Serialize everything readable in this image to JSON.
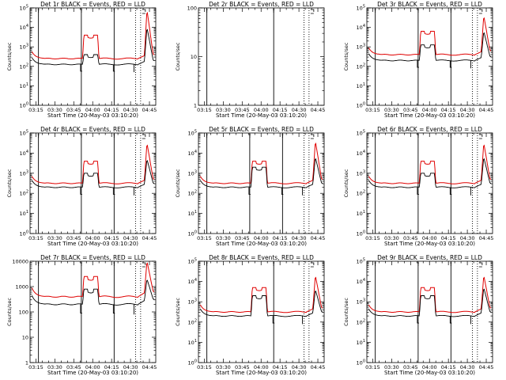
{
  "colors": {
    "events": "#000000",
    "lld": "#e00000",
    "background": "#ffffff"
  },
  "chart_data": [
    {
      "type": "line",
      "title": "Det 1r BLACK = Events, RED = LLD",
      "xlabel": "Start Time (20-May-03 03:10:20)",
      "ylabel": "Counts/sec",
      "x_tick_labels": [
        "03:15",
        "03:30",
        "03:45",
        "04:00",
        "04:15",
        "04:30",
        "04:45"
      ],
      "y_tick_labels": [
        "10^0",
        "10^1",
        "10^2",
        "10^3",
        "10^4",
        "10^5"
      ],
      "y_log_range": [
        0,
        5
      ],
      "has_data": true,
      "solid_lines": [
        "03:17",
        "03:51",
        "04:17"
      ],
      "dotted_lines": [
        "04:34",
        "04:38"
      ],
      "events_base": 2.1,
      "events_peak": 2.6,
      "lld_base": 2.4,
      "lld_peak": 3.6,
      "end_peak": 4.9,
      "end_events": 4.0,
      "series": [
        {
          "name": "Events",
          "color": "#000000"
        },
        {
          "name": "LLD",
          "color": "#e00000"
        }
      ]
    },
    {
      "type": "line",
      "title": "Det 2r BLACK = Events, RED = LLD",
      "xlabel": "Start Time (20-May-03 03:10:20)",
      "ylabel": "Counts/sec",
      "x_tick_labels": [
        "03:15",
        "03:30",
        "03:45",
        "04:00",
        "04:15",
        "04:30",
        "04:45"
      ],
      "y_tick_labels": [
        "1",
        "10",
        "100"
      ],
      "y_log_range": [
        0,
        2
      ],
      "has_data": false,
      "solid_lines": [
        "03:17",
        "04:10"
      ],
      "dotted_lines": [
        "04:34",
        "04:38"
      ],
      "events_base": 0,
      "events_peak": 0,
      "lld_base": 0,
      "lld_peak": 0,
      "end_peak": 0,
      "end_events": 0,
      "series": [
        {
          "name": "Events",
          "color": "#000000"
        },
        {
          "name": "LLD",
          "color": "#e00000"
        }
      ]
    },
    {
      "type": "line",
      "title": "Det 3r BLACK = Events, RED = LLD",
      "xlabel": "Start Time (20-May-03 03:10:20)",
      "ylabel": "Counts/sec",
      "x_tick_labels": [
        "03:15",
        "03:30",
        "03:45",
        "04:00",
        "04:15",
        "04:30",
        "04:45"
      ],
      "y_tick_labels": [
        "10^0",
        "10^1",
        "10^2",
        "10^3",
        "10^4",
        "10^5"
      ],
      "y_log_range": [
        0,
        5
      ],
      "has_data": true,
      "solid_lines": [
        "03:17",
        "03:51",
        "04:17"
      ],
      "dotted_lines": [
        "04:34",
        "04:38"
      ],
      "events_base": 2.3,
      "events_peak": 3.1,
      "lld_base": 2.6,
      "lld_peak": 3.8,
      "end_peak": 4.6,
      "end_events": 3.8,
      "series": [
        {
          "name": "Events",
          "color": "#000000"
        },
        {
          "name": "LLD",
          "color": "#e00000"
        }
      ]
    },
    {
      "type": "line",
      "title": "Det 4r BLACK = Events, RED = LLD",
      "xlabel": "Start Time (20-May-03 03:10:20)",
      "ylabel": "Counts/sec",
      "x_tick_labels": [
        "03:15",
        "03:30",
        "03:45",
        "04:00",
        "04:15",
        "04:30",
        "04:45"
      ],
      "y_tick_labels": [
        "10^0",
        "10^1",
        "10^2",
        "10^3",
        "10^4",
        "10^5"
      ],
      "y_log_range": [
        0,
        5
      ],
      "has_data": true,
      "solid_lines": [
        "03:17",
        "03:51",
        "04:17"
      ],
      "dotted_lines": [
        "04:34",
        "04:38"
      ],
      "events_base": 2.3,
      "events_peak": 3.0,
      "lld_base": 2.5,
      "lld_peak": 3.6,
      "end_peak": 4.5,
      "end_events": 3.7,
      "series": [
        {
          "name": "Events",
          "color": "#000000"
        },
        {
          "name": "LLD",
          "color": "#e00000"
        }
      ]
    },
    {
      "type": "line",
      "title": "Det 5r BLACK = Events, RED = LLD",
      "xlabel": "Start Time (20-May-03 03:10:20)",
      "ylabel": "Counts/sec",
      "x_tick_labels": [
        "03:15",
        "03:30",
        "03:45",
        "04:00",
        "04:15",
        "04:30",
        "04:45"
      ],
      "y_tick_labels": [
        "10^0",
        "10^1",
        "10^2",
        "10^3",
        "10^4",
        "10^5"
      ],
      "y_log_range": [
        0,
        5
      ],
      "has_data": true,
      "solid_lines": [
        "03:17",
        "03:51",
        "04:17"
      ],
      "dotted_lines": [
        "04:34",
        "04:38"
      ],
      "events_base": 2.3,
      "events_peak": 3.3,
      "lld_base": 2.5,
      "lld_peak": 3.6,
      "end_peak": 4.6,
      "end_events": 3.8,
      "series": [
        {
          "name": "Events",
          "color": "#000000"
        },
        {
          "name": "LLD",
          "color": "#e00000"
        }
      ]
    },
    {
      "type": "line",
      "title": "Det 6r BLACK = Events, RED = LLD",
      "xlabel": "Start Time (20-May-03 03:10:20)",
      "ylabel": "Counts/sec",
      "x_tick_labels": [
        "03:15",
        "03:30",
        "03:45",
        "04:00",
        "04:15",
        "04:30",
        "04:45"
      ],
      "y_tick_labels": [
        "10^0",
        "10^1",
        "10^2",
        "10^3",
        "10^4",
        "10^5"
      ],
      "y_log_range": [
        0,
        5
      ],
      "has_data": true,
      "solid_lines": [
        "03:17",
        "03:51",
        "04:17"
      ],
      "dotted_lines": [
        "04:34",
        "04:38"
      ],
      "events_base": 2.3,
      "events_peak": 3.0,
      "lld_base": 2.5,
      "lld_peak": 3.6,
      "end_peak": 4.5,
      "end_events": 3.8,
      "series": [
        {
          "name": "Events",
          "color": "#000000"
        },
        {
          "name": "LLD",
          "color": "#e00000"
        }
      ]
    },
    {
      "type": "line",
      "title": "Det 7r BLACK = Events, RED = LLD",
      "xlabel": "Start Time (20-May-03 03:10:20)",
      "ylabel": "Counts/sec",
      "x_tick_labels": [
        "03:15",
        "03:30",
        "03:45",
        "04:00",
        "04:15",
        "04:30",
        "04:45"
      ],
      "y_tick_labels": [
        "1",
        "10",
        "100",
        "1000",
        "10000"
      ],
      "y_log_range": [
        0,
        4
      ],
      "has_data": true,
      "solid_lines": [
        "03:17",
        "03:51",
        "04:17"
      ],
      "dotted_lines": [
        "04:34",
        "04:38"
      ],
      "events_base": 2.3,
      "events_peak": 2.9,
      "lld_base": 2.6,
      "lld_peak": 3.4,
      "end_peak": 4.0,
      "end_events": 3.3,
      "series": [
        {
          "name": "Events",
          "color": "#000000"
        },
        {
          "name": "LLD",
          "color": "#e00000"
        }
      ]
    },
    {
      "type": "line",
      "title": "Det 8r BLACK = Events, RED = LLD",
      "xlabel": "Start Time (20-May-03 03:10:20)",
      "ylabel": "Counts/sec",
      "x_tick_labels": [
        "03:15",
        "03:30",
        "03:45",
        "04:00",
        "04:15",
        "04:30",
        "04:45"
      ],
      "y_tick_labels": [
        "10^0",
        "10^1",
        "10^2",
        "10^3",
        "10^4",
        "10^5"
      ],
      "y_log_range": [
        0,
        5
      ],
      "has_data": true,
      "solid_lines": [
        "03:17",
        "04:10"
      ],
      "dotted_lines": [
        "04:34",
        "04:38"
      ],
      "events_base": 2.3,
      "events_peak": 3.3,
      "lld_base": 2.5,
      "lld_peak": 3.7,
      "end_peak": 4.3,
      "end_events": 3.6,
      "series": [
        {
          "name": "Events",
          "color": "#000000"
        },
        {
          "name": "LLD",
          "color": "#e00000"
        }
      ]
    },
    {
      "type": "line",
      "title": "Det 9r BLACK = Events, RED = LLD",
      "xlabel": "Start Time (20-May-03 03:10:20)",
      "ylabel": "Counts/sec",
      "x_tick_labels": [
        "03:15",
        "03:30",
        "03:45",
        "04:00",
        "04:15",
        "04:30",
        "04:45"
      ],
      "y_tick_labels": [
        "10^0",
        "10^1",
        "10^2",
        "10^3",
        "10^4",
        "10^5"
      ],
      "y_log_range": [
        0,
        5
      ],
      "has_data": true,
      "solid_lines": [
        "03:17",
        "03:51",
        "04:17"
      ],
      "dotted_lines": [
        "04:34",
        "04:38"
      ],
      "events_base": 2.3,
      "events_peak": 3.3,
      "lld_base": 2.5,
      "lld_peak": 3.7,
      "end_peak": 4.3,
      "end_events": 3.7,
      "series": [
        {
          "name": "Events",
          "color": "#000000"
        },
        {
          "name": "LLD",
          "color": "#e00000"
        }
      ]
    }
  ]
}
